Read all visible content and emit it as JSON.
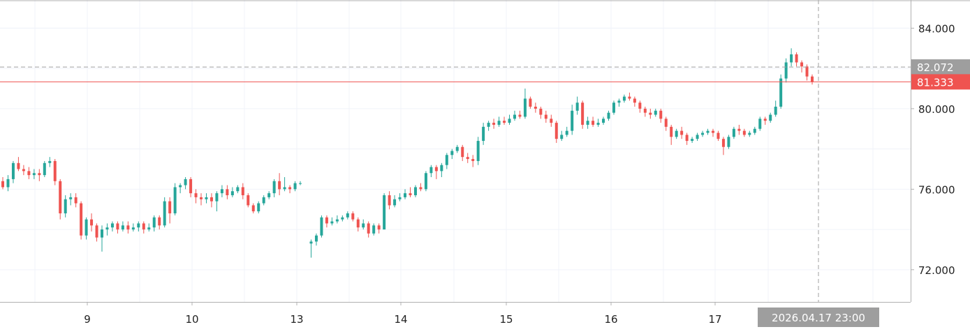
{
  "chart_data": {
    "type": "candlestick",
    "title": "",
    "xlabel": "",
    "ylabel": "",
    "ylim": [
      70.4,
      85.4
    ],
    "yticks": [
      72.0,
      76.0,
      80.0,
      84.0
    ],
    "ytick_labels": [
      "72.000",
      "76.000",
      "80.000",
      "84.000"
    ],
    "x_tick_labels": [
      "9",
      "10",
      "13",
      "14",
      "15",
      "16",
      "17"
    ],
    "grid": true,
    "colors": {
      "up": "#26a69a",
      "down": "#ef5350",
      "last_price": "#ef5350",
      "crosshair": "#9e9e9e",
      "axis_label_bg": "#9e9e9e",
      "grid": "#f0f3fa"
    },
    "price_lines": [
      {
        "name": "crosshair",
        "value": 82.072,
        "label": "82.072",
        "style": "dashed"
      },
      {
        "name": "last",
        "value": 81.333,
        "label": "81.333",
        "style": "solid"
      }
    ],
    "crosshair_time_label": "2026.04.17 23:00",
    "candles": [
      [
        76.4,
        76.1,
        76.6,
        76.0
      ],
      [
        76.1,
        76.5,
        76.7,
        75.9
      ],
      [
        76.5,
        77.3,
        77.4,
        76.3
      ],
      [
        77.3,
        77.0,
        77.6,
        76.9
      ],
      [
        77.0,
        76.9,
        77.2,
        76.7
      ],
      [
        76.9,
        76.7,
        77.1,
        76.5
      ],
      [
        76.7,
        76.8,
        77.0,
        76.5
      ],
      [
        76.8,
        76.7,
        77.0,
        76.4
      ],
      [
        76.7,
        77.3,
        77.4,
        76.6
      ],
      [
        77.3,
        77.4,
        77.6,
        77.1
      ],
      [
        77.4,
        76.4,
        77.5,
        76.2
      ],
      [
        76.4,
        74.8,
        76.5,
        74.5
      ],
      [
        74.8,
        75.5,
        75.7,
        74.6
      ],
      [
        75.5,
        75.6,
        75.8,
        75.2
      ],
      [
        75.6,
        75.3,
        75.8,
        75.1
      ],
      [
        75.3,
        73.7,
        75.4,
        73.5
      ],
      [
        73.7,
        74.5,
        74.6,
        73.5
      ],
      [
        74.5,
        74.2,
        74.8,
        73.9
      ],
      [
        74.2,
        73.6,
        74.3,
        73.4
      ],
      [
        73.6,
        74.0,
        74.2,
        72.9
      ],
      [
        74.0,
        74.1,
        74.3,
        73.7
      ],
      [
        74.1,
        74.3,
        74.4,
        73.9
      ],
      [
        74.3,
        74.0,
        74.4,
        73.8
      ],
      [
        74.0,
        74.2,
        74.4,
        73.9
      ],
      [
        74.2,
        74.0,
        74.4,
        73.8
      ],
      [
        74.0,
        74.1,
        74.3,
        73.9
      ],
      [
        74.1,
        74.3,
        74.4,
        73.9
      ],
      [
        74.3,
        74.0,
        74.4,
        73.8
      ],
      [
        74.0,
        74.1,
        74.3,
        73.9
      ],
      [
        74.1,
        74.6,
        74.7,
        73.9
      ],
      [
        74.6,
        74.2,
        74.7,
        74.0
      ],
      [
        74.2,
        75.4,
        75.6,
        74.1
      ],
      [
        75.4,
        74.8,
        75.6,
        74.3
      ],
      [
        74.8,
        76.1,
        76.3,
        74.7
      ],
      [
        76.1,
        76.2,
        76.3,
        75.8
      ],
      [
        76.2,
        76.5,
        76.6,
        76.0
      ],
      [
        76.5,
        75.8,
        76.6,
        75.6
      ],
      [
        75.8,
        75.6,
        76.0,
        75.3
      ],
      [
        75.6,
        75.5,
        75.8,
        75.2
      ],
      [
        75.5,
        75.6,
        75.8,
        75.3
      ],
      [
        75.6,
        75.4,
        75.8,
        75.1
      ],
      [
        75.4,
        75.8,
        75.9,
        74.9
      ],
      [
        75.8,
        76.0,
        76.2,
        75.6
      ],
      [
        76.0,
        75.7,
        76.2,
        75.5
      ],
      [
        75.7,
        75.9,
        76.1,
        75.6
      ],
      [
        75.9,
        76.1,
        76.2,
        75.8
      ],
      [
        76.1,
        75.7,
        76.3,
        75.5
      ],
      [
        75.7,
        75.2,
        75.8,
        75.1
      ],
      [
        75.2,
        74.9,
        75.3,
        74.8
      ],
      [
        74.9,
        75.3,
        75.4,
        74.8
      ],
      [
        75.3,
        75.6,
        75.7,
        75.2
      ],
      [
        75.6,
        75.8,
        75.9,
        75.5
      ],
      [
        75.8,
        76.4,
        76.5,
        75.6
      ],
      [
        76.4,
        76.0,
        76.8,
        75.7
      ],
      [
        76.0,
        76.1,
        76.6,
        75.9
      ],
      [
        76.1,
        76.0,
        76.2,
        75.8
      ],
      [
        76.0,
        76.3,
        76.4,
        75.9
      ],
      [
        76.3,
        76.3,
        76.4,
        76.2
      ],
      [
        73.3,
        73.4,
        73.5,
        72.6
      ],
      [
        73.4,
        73.7,
        73.8,
        73.2
      ],
      [
        73.7,
        74.6,
        74.7,
        73.6
      ],
      [
        74.6,
        74.3,
        74.7,
        74.1
      ],
      [
        74.3,
        74.4,
        74.6,
        74.2
      ],
      [
        74.4,
        74.5,
        74.7,
        74.3
      ],
      [
        74.5,
        74.6,
        74.7,
        74.4
      ],
      [
        74.6,
        74.8,
        74.9,
        74.5
      ],
      [
        74.8,
        74.5,
        74.9,
        74.4
      ],
      [
        74.5,
        74.1,
        74.6,
        73.9
      ],
      [
        74.1,
        74.3,
        74.5,
        74.0
      ],
      [
        74.3,
        73.8,
        74.4,
        73.6
      ],
      [
        73.8,
        74.2,
        74.3,
        73.7
      ],
      [
        74.2,
        74.0,
        74.3,
        73.8
      ],
      [
        74.0,
        75.7,
        75.8,
        74.0
      ],
      [
        75.7,
        75.2,
        75.9,
        75.0
      ],
      [
        75.2,
        75.5,
        75.7,
        75.1
      ],
      [
        75.5,
        75.6,
        75.8,
        75.4
      ],
      [
        75.6,
        75.8,
        76.0,
        75.5
      ],
      [
        75.8,
        75.7,
        76.1,
        75.6
      ],
      [
        75.7,
        76.1,
        76.2,
        75.6
      ],
      [
        76.1,
        76.0,
        76.3,
        75.9
      ],
      [
        76.0,
        76.8,
        76.9,
        75.9
      ],
      [
        76.8,
        77.1,
        77.2,
        76.6
      ],
      [
        77.1,
        76.9,
        77.2,
        76.5
      ],
      [
        76.9,
        77.2,
        77.3,
        76.6
      ],
      [
        77.2,
        77.7,
        77.8,
        77.0
      ],
      [
        77.7,
        77.9,
        78.0,
        77.5
      ],
      [
        77.9,
        78.1,
        78.2,
        77.8
      ],
      [
        78.1,
        77.6,
        78.2,
        77.4
      ],
      [
        77.6,
        77.5,
        77.8,
        77.3
      ],
      [
        77.5,
        77.4,
        77.7,
        77.1
      ],
      [
        77.4,
        78.4,
        78.6,
        77.2
      ],
      [
        78.4,
        79.1,
        79.3,
        78.2
      ],
      [
        79.1,
        79.3,
        79.4,
        78.9
      ],
      [
        79.3,
        79.2,
        79.5,
        79.0
      ],
      [
        79.2,
        79.4,
        79.6,
        79.1
      ],
      [
        79.4,
        79.3,
        79.6,
        79.2
      ],
      [
        79.3,
        79.5,
        79.7,
        79.2
      ],
      [
        79.5,
        79.7,
        79.9,
        79.4
      ],
      [
        79.7,
        79.6,
        79.9,
        79.5
      ],
      [
        79.6,
        80.5,
        81.0,
        79.5
      ],
      [
        80.5,
        80.1,
        80.6,
        80.0
      ],
      [
        80.1,
        80.0,
        80.3,
        79.8
      ],
      [
        80.0,
        79.7,
        80.1,
        79.5
      ],
      [
        79.7,
        79.5,
        79.9,
        79.3
      ],
      [
        79.5,
        79.3,
        79.7,
        79.1
      ],
      [
        79.3,
        78.5,
        79.4,
        78.3
      ],
      [
        78.5,
        78.7,
        78.9,
        78.4
      ],
      [
        78.7,
        78.9,
        79.1,
        78.6
      ],
      [
        78.9,
        79.9,
        80.2,
        78.7
      ],
      [
        79.9,
        80.3,
        80.6,
        79.7
      ],
      [
        80.3,
        79.2,
        80.4,
        79.0
      ],
      [
        79.2,
        79.4,
        79.6,
        79.0
      ],
      [
        79.4,
        79.2,
        79.6,
        79.1
      ],
      [
        79.2,
        79.3,
        79.5,
        79.1
      ],
      [
        79.3,
        79.5,
        79.6,
        79.2
      ],
      [
        79.5,
        79.8,
        79.9,
        79.4
      ],
      [
        79.8,
        80.3,
        80.4,
        79.7
      ],
      [
        80.3,
        80.4,
        80.5,
        80.1
      ],
      [
        80.4,
        80.6,
        80.7,
        80.3
      ],
      [
        80.6,
        80.5,
        80.8,
        80.4
      ],
      [
        80.5,
        80.3,
        80.6,
        80.1
      ],
      [
        80.3,
        80.0,
        80.4,
        79.8
      ],
      [
        80.0,
        79.8,
        80.1,
        79.6
      ],
      [
        79.8,
        79.7,
        80.0,
        79.5
      ],
      [
        79.7,
        79.9,
        80.0,
        79.6
      ],
      [
        79.9,
        79.5,
        80.0,
        79.3
      ],
      [
        79.5,
        79.1,
        79.6,
        78.9
      ],
      [
        79.1,
        78.6,
        79.2,
        78.2
      ],
      [
        78.6,
        78.9,
        79.0,
        78.5
      ],
      [
        78.9,
        78.7,
        79.1,
        78.5
      ],
      [
        78.7,
        78.4,
        78.8,
        78.2
      ],
      [
        78.4,
        78.5,
        78.6,
        78.3
      ],
      [
        78.5,
        78.7,
        78.8,
        78.4
      ],
      [
        78.7,
        78.8,
        78.9,
        78.6
      ],
      [
        78.8,
        78.9,
        79.0,
        78.7
      ],
      [
        78.9,
        78.8,
        79.0,
        78.6
      ],
      [
        78.8,
        78.5,
        78.9,
        78.4
      ],
      [
        78.5,
        78.1,
        78.6,
        77.7
      ],
      [
        78.1,
        78.6,
        78.7,
        78.0
      ],
      [
        78.6,
        79.0,
        79.1,
        78.5
      ],
      [
        79.0,
        78.9,
        79.2,
        78.7
      ],
      [
        78.9,
        78.7,
        79.0,
        78.6
      ],
      [
        78.7,
        78.8,
        78.9,
        78.6
      ],
      [
        78.8,
        79.0,
        79.1,
        78.7
      ],
      [
        79.0,
        79.5,
        79.6,
        78.9
      ],
      [
        79.5,
        79.4,
        79.6,
        79.2
      ],
      [
        79.4,
        79.7,
        79.8,
        79.3
      ],
      [
        79.7,
        80.1,
        80.4,
        79.6
      ],
      [
        80.1,
        81.5,
        81.7,
        80.0
      ],
      [
        81.5,
        82.3,
        82.5,
        81.3
      ],
      [
        82.3,
        82.7,
        83.0,
        82.1
      ],
      [
        82.7,
        82.3,
        82.8,
        82.1
      ],
      [
        82.3,
        82.1,
        82.4,
        81.8
      ],
      [
        82.1,
        81.6,
        82.2,
        81.4
      ],
      [
        81.6,
        81.333,
        81.7,
        81.2
      ]
    ]
  }
}
